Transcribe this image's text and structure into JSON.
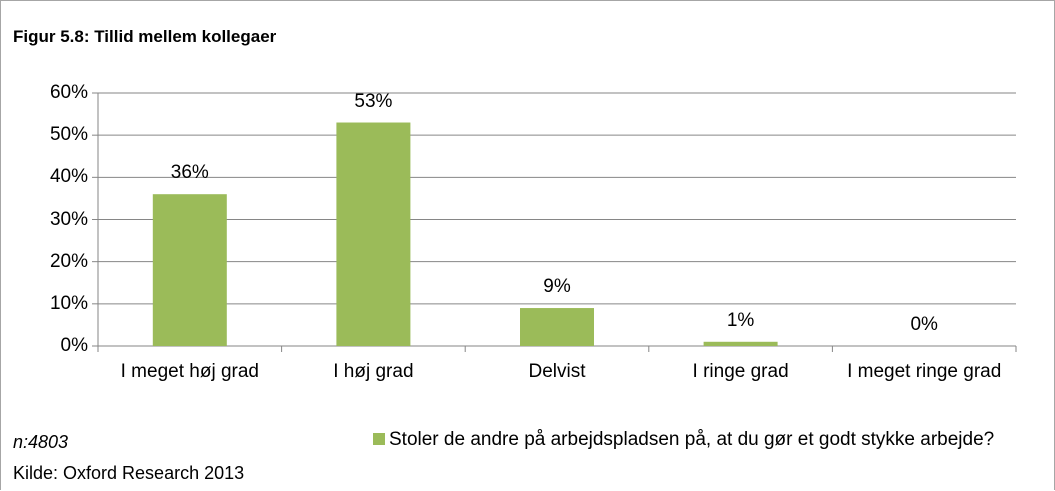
{
  "chart_data": {
    "type": "bar",
    "title": "Figur 5.8: Tillid mellem kollegaer",
    "categories": [
      "I meget høj grad",
      "I høj grad",
      "Delvist",
      "I ringe grad",
      "I meget ringe grad"
    ],
    "series": [
      {
        "name": "Stoler de andre på arbejdspladsen på, at du gør et godt stykke arbejde?",
        "color": "#9bbb59",
        "values": [
          36,
          53,
          9,
          1,
          0
        ],
        "value_labels": [
          "36%",
          "53%",
          "9%",
          "1%",
          "0%"
        ]
      }
    ],
    "ylim": [
      0,
      60
    ],
    "yticks": [
      {
        "value": 0,
        "label": "0%"
      },
      {
        "value": 10,
        "label": "10%"
      },
      {
        "value": 20,
        "label": "20%"
      },
      {
        "value": 30,
        "label": "30%"
      },
      {
        "value": 40,
        "label": "40%"
      },
      {
        "value": 50,
        "label": "50%"
      },
      {
        "value": 60,
        "label": "60%"
      }
    ],
    "grid": true,
    "legend": "bottom",
    "notes": {
      "sample": "n:4803",
      "source": "Kilde: Oxford Research 2013"
    }
  }
}
